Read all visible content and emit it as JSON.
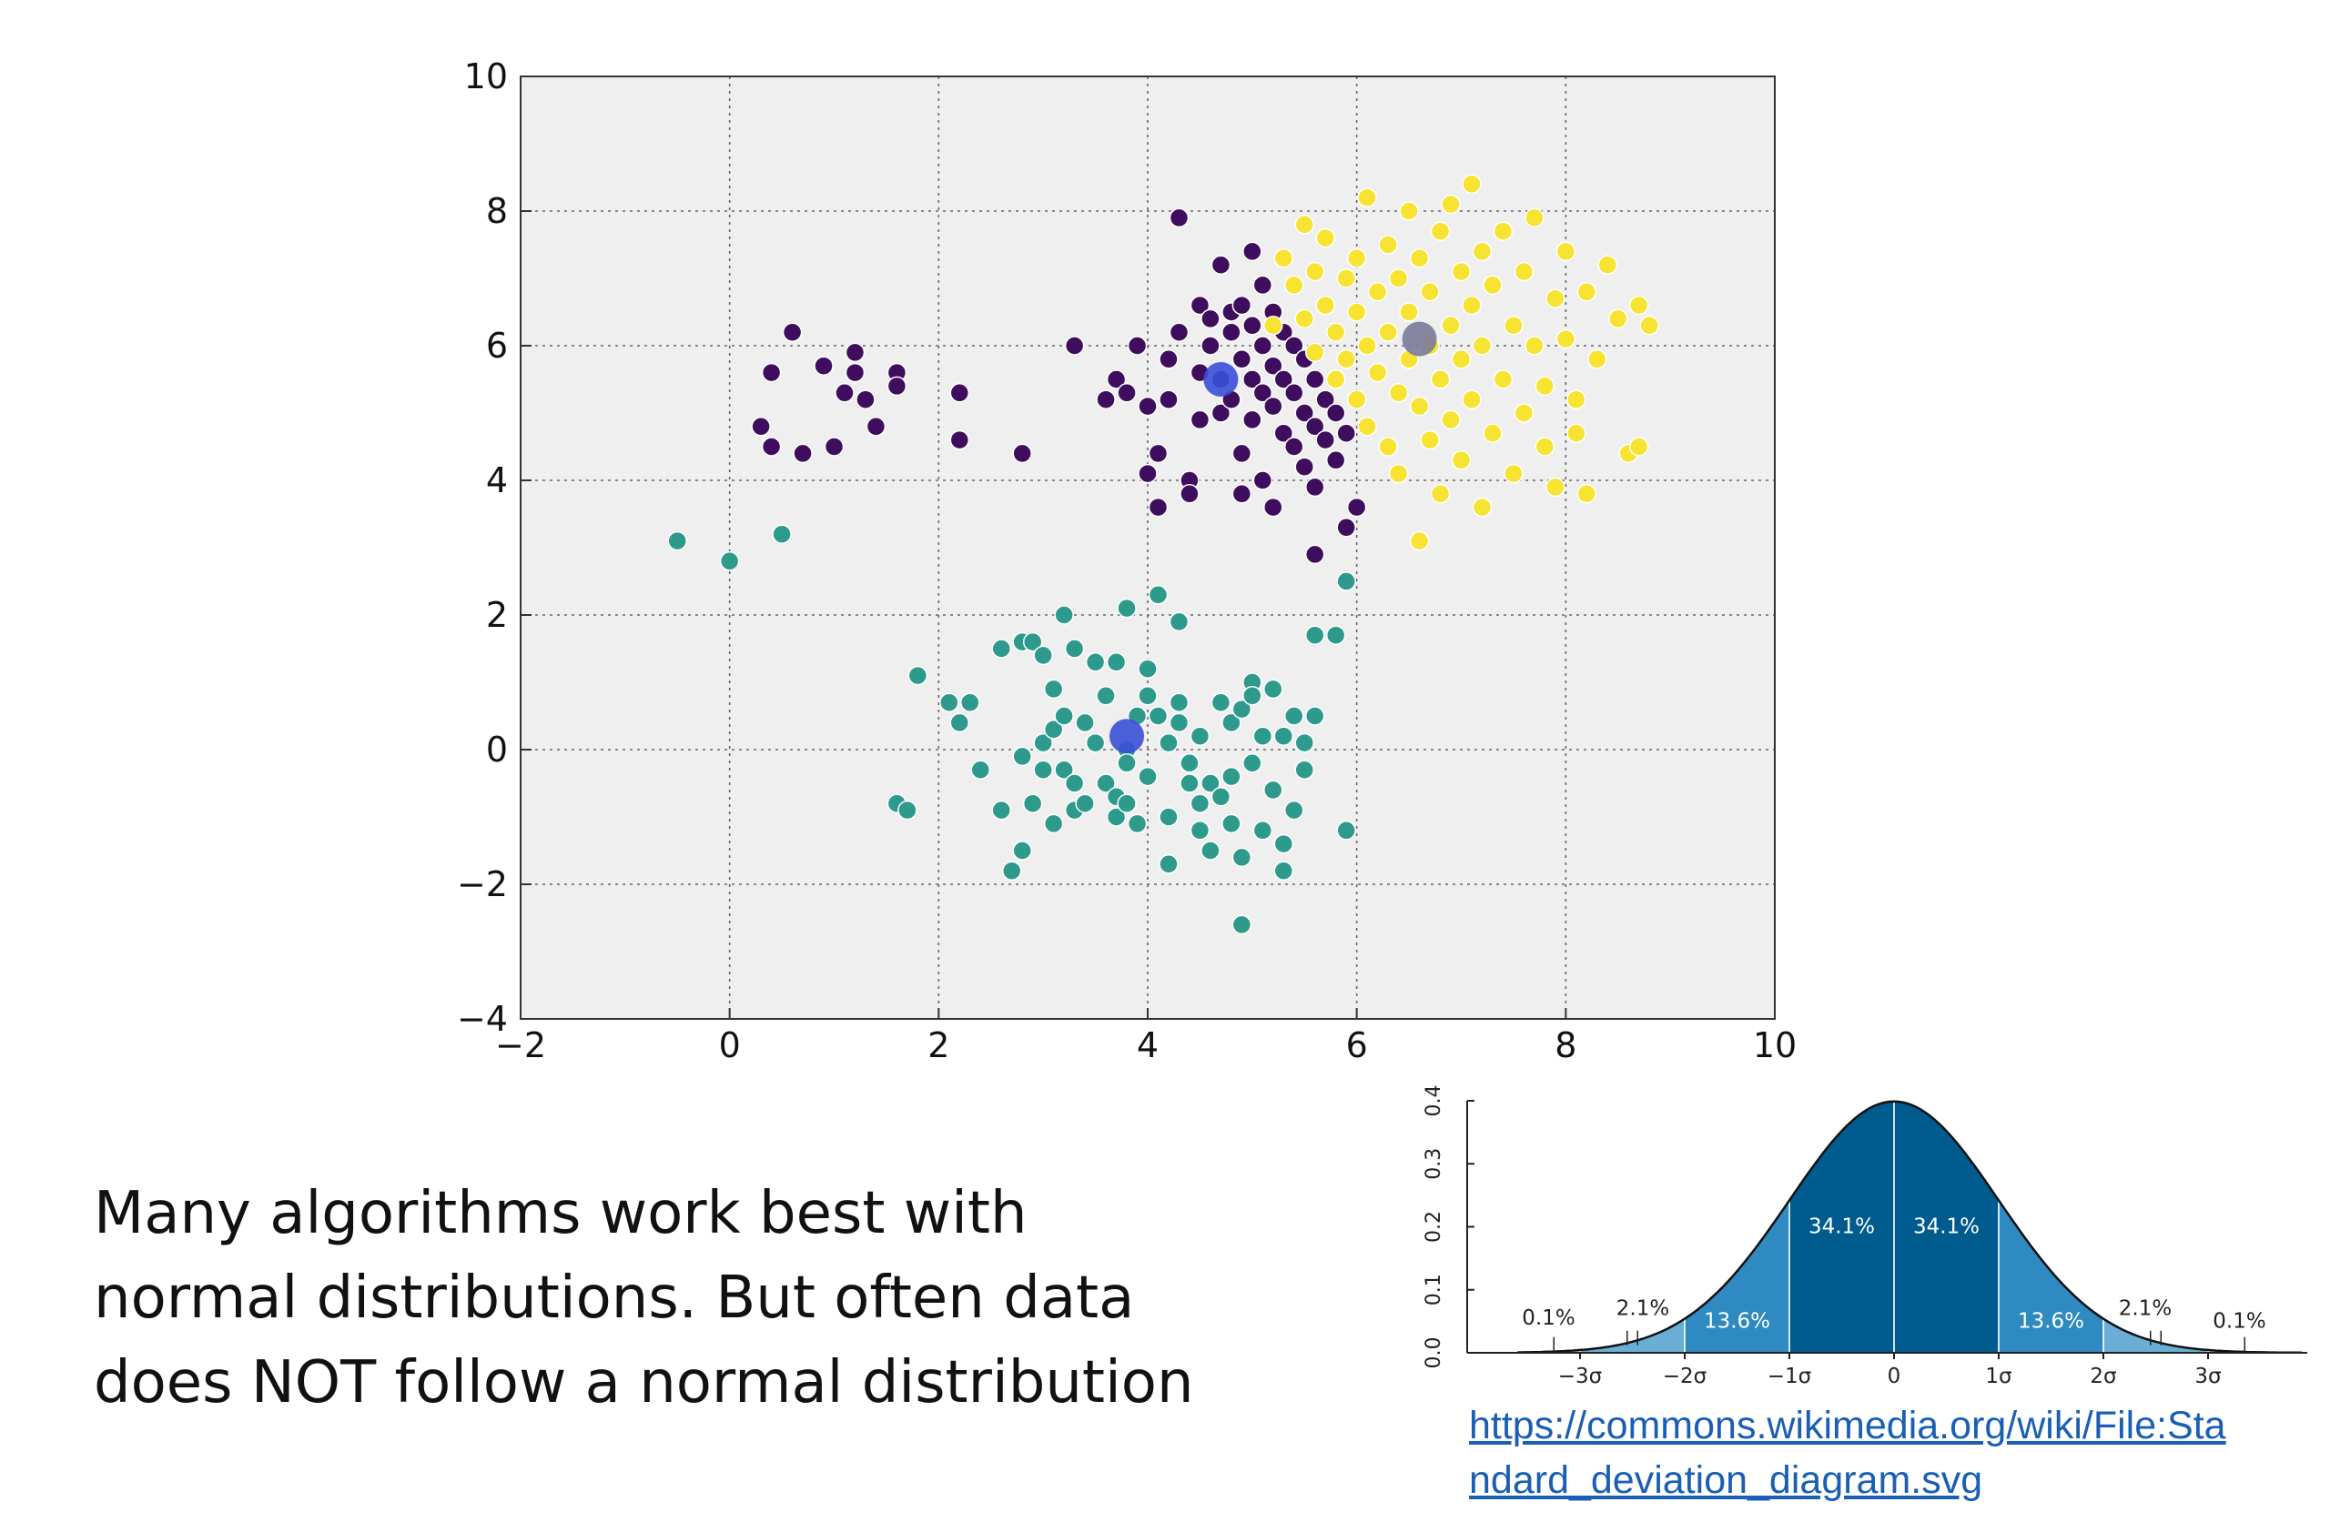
{
  "chart_data": [
    {
      "type": "scatter",
      "title": "",
      "xlabel": "",
      "ylabel": "",
      "xlim": [
        -2,
        10
      ],
      "ylim": [
        -4,
        10
      ],
      "xticks": [
        "−2",
        "0",
        "2",
        "4",
        "6",
        "8",
        "10"
      ],
      "yticks": [
        "−4",
        "−2",
        "0",
        "2",
        "4",
        "6",
        "8",
        "10"
      ],
      "grid": true,
      "background": "#efefef",
      "series": [
        {
          "color": "#2d9a8c",
          "points": [
            [
              -0.5,
              3.1
            ],
            [
              0.0,
              2.8
            ],
            [
              0.5,
              3.2
            ],
            [
              1.6,
              -0.8
            ],
            [
              1.7,
              -0.9
            ],
            [
              1.8,
              1.1
            ],
            [
              2.1,
              0.7
            ],
            [
              2.2,
              0.4
            ],
            [
              2.3,
              0.7
            ],
            [
              2.4,
              -0.3
            ],
            [
              2.6,
              1.5
            ],
            [
              2.6,
              -0.9
            ],
            [
              2.7,
              -1.8
            ],
            [
              2.8,
              1.6
            ],
            [
              2.8,
              -0.1
            ],
            [
              2.8,
              -1.5
            ],
            [
              2.9,
              1.6
            ],
            [
              2.9,
              -0.8
            ],
            [
              3.0,
              1.4
            ],
            [
              3.0,
              -0.3
            ],
            [
              3.0,
              0.1
            ],
            [
              3.1,
              0.3
            ],
            [
              3.1,
              0.9
            ],
            [
              3.1,
              -1.1
            ],
            [
              3.2,
              2.0
            ],
            [
              3.2,
              0.5
            ],
            [
              3.2,
              -0.3
            ],
            [
              3.3,
              -0.5
            ],
            [
              3.3,
              -0.9
            ],
            [
              3.3,
              1.5
            ],
            [
              3.4,
              0.4
            ],
            [
              3.4,
              -0.8
            ],
            [
              3.5,
              0.1
            ],
            [
              3.5,
              1.3
            ],
            [
              3.6,
              -0.5
            ],
            [
              3.6,
              0.8
            ],
            [
              3.7,
              -0.7
            ],
            [
              3.7,
              -1.0
            ],
            [
              3.7,
              1.3
            ],
            [
              3.8,
              2.1
            ],
            [
              3.8,
              0.0
            ],
            [
              3.8,
              -0.2
            ],
            [
              3.8,
              -0.8
            ],
            [
              3.9,
              0.5
            ],
            [
              3.9,
              -1.1
            ],
            [
              4.0,
              0.8
            ],
            [
              4.0,
              -0.4
            ],
            [
              4.0,
              1.2
            ],
            [
              4.1,
              2.3
            ],
            [
              4.1,
              0.5
            ],
            [
              4.2,
              0.1
            ],
            [
              4.2,
              -1.0
            ],
            [
              4.2,
              -1.7
            ],
            [
              4.3,
              0.7
            ],
            [
              4.3,
              0.4
            ],
            [
              4.3,
              1.9
            ],
            [
              4.4,
              -0.2
            ],
            [
              4.4,
              -0.5
            ],
            [
              4.5,
              0.2
            ],
            [
              4.5,
              -0.8
            ],
            [
              4.5,
              -1.2
            ],
            [
              4.6,
              -0.5
            ],
            [
              4.6,
              -1.5
            ],
            [
              4.7,
              -0.7
            ],
            [
              4.7,
              0.7
            ],
            [
              4.8,
              -0.4
            ],
            [
              4.8,
              0.4
            ],
            [
              4.8,
              -1.1
            ],
            [
              4.9,
              0.6
            ],
            [
              4.9,
              -1.6
            ],
            [
              4.9,
              -2.6
            ],
            [
              5.0,
              1.0
            ],
            [
              5.0,
              -0.2
            ],
            [
              5.0,
              0.8
            ],
            [
              5.1,
              0.2
            ],
            [
              5.1,
              -1.2
            ],
            [
              5.2,
              0.9
            ],
            [
              5.2,
              -0.6
            ],
            [
              5.3,
              0.2
            ],
            [
              5.3,
              -1.4
            ],
            [
              5.3,
              -1.8
            ],
            [
              5.4,
              0.5
            ],
            [
              5.4,
              -0.9
            ],
            [
              5.5,
              0.1
            ],
            [
              5.5,
              -0.3
            ],
            [
              5.6,
              0.5
            ],
            [
              5.6,
              1.7
            ],
            [
              5.8,
              1.7
            ],
            [
              5.9,
              2.5
            ],
            [
              5.9,
              -1.2
            ]
          ]
        },
        {
          "color": "#3f0d5e",
          "points": [
            [
              0.3,
              4.8
            ],
            [
              0.4,
              5.6
            ],
            [
              0.4,
              4.5
            ],
            [
              0.6,
              6.2
            ],
            [
              0.7,
              4.4
            ],
            [
              0.9,
              5.7
            ],
            [
              1.0,
              4.5
            ],
            [
              1.1,
              5.3
            ],
            [
              1.2,
              5.9
            ],
            [
              1.2,
              5.6
            ],
            [
              1.3,
              5.2
            ],
            [
              1.4,
              4.8
            ],
            [
              1.6,
              5.6
            ],
            [
              1.6,
              5.4
            ],
            [
              2.2,
              5.3
            ],
            [
              2.2,
              4.6
            ],
            [
              2.8,
              4.4
            ],
            [
              3.3,
              6.0
            ],
            [
              3.6,
              5.2
            ],
            [
              3.7,
              5.5
            ],
            [
              3.8,
              5.3
            ],
            [
              3.9,
              6.0
            ],
            [
              4.0,
              5.1
            ],
            [
              4.0,
              4.1
            ],
            [
              4.1,
              3.6
            ],
            [
              4.1,
              4.4
            ],
            [
              4.2,
              5.8
            ],
            [
              4.2,
              5.2
            ],
            [
              4.3,
              7.9
            ],
            [
              4.3,
              6.2
            ],
            [
              4.4,
              4.0
            ],
            [
              4.4,
              3.8
            ],
            [
              4.5,
              6.6
            ],
            [
              4.5,
              5.6
            ],
            [
              4.5,
              4.9
            ],
            [
              4.6,
              6.4
            ],
            [
              4.6,
              6.0
            ],
            [
              4.7,
              7.2
            ],
            [
              4.7,
              5.5
            ],
            [
              4.7,
              5.0
            ],
            [
              4.8,
              6.5
            ],
            [
              4.8,
              6.2
            ],
            [
              4.8,
              5.2
            ],
            [
              4.9,
              6.6
            ],
            [
              4.9,
              5.8
            ],
            [
              4.9,
              4.4
            ],
            [
              4.9,
              3.8
            ],
            [
              5.0,
              7.4
            ],
            [
              5.0,
              6.3
            ],
            [
              5.0,
              5.5
            ],
            [
              5.0,
              4.9
            ],
            [
              5.1,
              6.9
            ],
            [
              5.1,
              6.0
            ],
            [
              5.1,
              5.3
            ],
            [
              5.1,
              4.0
            ],
            [
              5.2,
              6.5
            ],
            [
              5.2,
              5.7
            ],
            [
              5.2,
              5.1
            ],
            [
              5.2,
              3.6
            ],
            [
              5.3,
              6.2
            ],
            [
              5.3,
              5.5
            ],
            [
              5.3,
              4.7
            ],
            [
              5.4,
              6.0
            ],
            [
              5.4,
              5.3
            ],
            [
              5.4,
              4.5
            ],
            [
              5.5,
              5.8
            ],
            [
              5.5,
              5.0
            ],
            [
              5.5,
              4.2
            ],
            [
              5.6,
              5.5
            ],
            [
              5.6,
              4.8
            ],
            [
              5.6,
              3.9
            ],
            [
              5.7,
              5.2
            ],
            [
              5.7,
              4.6
            ],
            [
              5.8,
              5.0
            ],
            [
              5.8,
              4.3
            ],
            [
              5.9,
              4.7
            ],
            [
              5.6,
              2.9
            ],
            [
              5.9,
              3.3
            ],
            [
              6.0,
              3.6
            ]
          ]
        },
        {
          "color": "#f7e331",
          "points": [
            [
              5.2,
              6.3
            ],
            [
              5.3,
              7.3
            ],
            [
              5.4,
              6.9
            ],
            [
              5.5,
              7.8
            ],
            [
              5.5,
              6.4
            ],
            [
              5.6,
              7.1
            ],
            [
              5.6,
              5.9
            ],
            [
              5.7,
              6.6
            ],
            [
              5.7,
              7.6
            ],
            [
              5.8,
              6.2
            ],
            [
              5.8,
              5.5
            ],
            [
              5.9,
              7.0
            ],
            [
              5.9,
              5.8
            ],
            [
              6.0,
              6.5
            ],
            [
              6.0,
              7.3
            ],
            [
              6.0,
              5.2
            ],
            [
              6.1,
              8.2
            ],
            [
              6.1,
              6.0
            ],
            [
              6.1,
              4.8
            ],
            [
              6.2,
              6.8
            ],
            [
              6.2,
              5.6
            ],
            [
              6.3,
              7.5
            ],
            [
              6.3,
              4.5
            ],
            [
              6.3,
              6.2
            ],
            [
              6.4,
              5.3
            ],
            [
              6.4,
              7.0
            ],
            [
              6.4,
              4.1
            ],
            [
              6.5,
              6.5
            ],
            [
              6.5,
              5.8
            ],
            [
              6.5,
              8.0
            ],
            [
              6.6,
              7.3
            ],
            [
              6.6,
              5.1
            ],
            [
              6.6,
              3.1
            ],
            [
              6.7,
              6.0
            ],
            [
              6.7,
              4.6
            ],
            [
              6.7,
              6.8
            ],
            [
              6.8,
              7.7
            ],
            [
              6.8,
              5.5
            ],
            [
              6.8,
              3.8
            ],
            [
              6.9,
              6.3
            ],
            [
              6.9,
              8.1
            ],
            [
              6.9,
              4.9
            ],
            [
              7.0,
              7.1
            ],
            [
              7.0,
              5.8
            ],
            [
              7.0,
              4.3
            ],
            [
              7.1,
              6.6
            ],
            [
              7.1,
              8.4
            ],
            [
              7.1,
              5.2
            ],
            [
              7.2,
              7.4
            ],
            [
              7.2,
              3.6
            ],
            [
              7.2,
              6.0
            ],
            [
              7.3,
              4.7
            ],
            [
              7.3,
              6.9
            ],
            [
              7.4,
              5.5
            ],
            [
              7.4,
              7.7
            ],
            [
              7.5,
              6.3
            ],
            [
              7.5,
              4.1
            ],
            [
              7.6,
              7.1
            ],
            [
              7.6,
              5.0
            ],
            [
              7.7,
              6.0
            ],
            [
              7.7,
              7.9
            ],
            [
              7.8,
              5.4
            ],
            [
              7.8,
              4.5
            ],
            [
              7.9,
              6.7
            ],
            [
              7.9,
              3.9
            ],
            [
              8.0,
              6.1
            ],
            [
              8.0,
              7.4
            ],
            [
              8.1,
              5.2
            ],
            [
              8.1,
              4.7
            ],
            [
              8.2,
              6.8
            ],
            [
              8.2,
              3.8
            ],
            [
              8.3,
              5.8
            ],
            [
              8.4,
              7.2
            ],
            [
              8.5,
              6.4
            ],
            [
              8.6,
              4.4
            ],
            [
              8.7,
              6.6
            ],
            [
              8.7,
              4.5
            ],
            [
              8.8,
              6.3
            ]
          ]
        },
        {
          "color": "#3a4fd8",
          "points": [
            [
              4.7,
              5.5
            ],
            [
              3.8,
              0.2
            ]
          ]
        },
        {
          "color": "#7a7a9a",
          "points": [
            [
              6.6,
              6.1
            ]
          ]
        }
      ]
    },
    {
      "type": "area",
      "title": "",
      "xlim": [
        -3.6,
        3.9
      ],
      "ylim": [
        0.0,
        0.4
      ],
      "yticks": [
        "0.0",
        "0.1",
        "0.2",
        "0.3",
        "0.4"
      ],
      "xticks": [
        "−3σ",
        "−2σ",
        "−1σ",
        "0",
        "1σ",
        "2σ",
        "3σ"
      ],
      "bands": [
        {
          "from": -1,
          "to": 1,
          "color": "#005b8f"
        },
        {
          "from": -2,
          "to": -1,
          "color": "#2e8ac0"
        },
        {
          "from": 1,
          "to": 2,
          "color": "#2e8ac0"
        },
        {
          "from": -3,
          "to": -2,
          "color": "#6aaed6"
        },
        {
          "from": 2,
          "to": 3,
          "color": "#6aaed6"
        },
        {
          "from": -3.6,
          "to": -3,
          "color": "#9cc8e6"
        },
        {
          "from": 3,
          "to": 3.6,
          "color": "#9cc8e6"
        }
      ],
      "labels": [
        {
          "text": "34.1%",
          "x": -0.5,
          "y": 0.19,
          "color": "#ffffff"
        },
        {
          "text": "34.1%",
          "x": 0.5,
          "y": 0.19,
          "color": "#ffffff"
        },
        {
          "text": "13.6%",
          "x": -1.5,
          "y": 0.04,
          "color": "#ffffff"
        },
        {
          "text": "13.6%",
          "x": 1.5,
          "y": 0.04,
          "color": "#ffffff"
        },
        {
          "text": "2.1%",
          "x": -2.4,
          "y": 0.06,
          "color": "#222222"
        },
        {
          "text": "2.1%",
          "x": 2.4,
          "y": 0.06,
          "color": "#222222"
        },
        {
          "text": "0.1%",
          "x": -3.3,
          "y": 0.045,
          "color": "#222222"
        },
        {
          "text": "0.1%",
          "x": 3.3,
          "y": 0.04,
          "color": "#222222"
        }
      ]
    }
  ],
  "caption": {
    "lines": [
      "Many algorithms work best with",
      "normal distributions. But often data",
      "does NOT follow a normal distribution"
    ]
  },
  "source_link": {
    "lines": [
      "https://commons.wikimedia.org/wiki/File:Sta",
      "ndard_deviation_diagram.svg"
    ]
  }
}
